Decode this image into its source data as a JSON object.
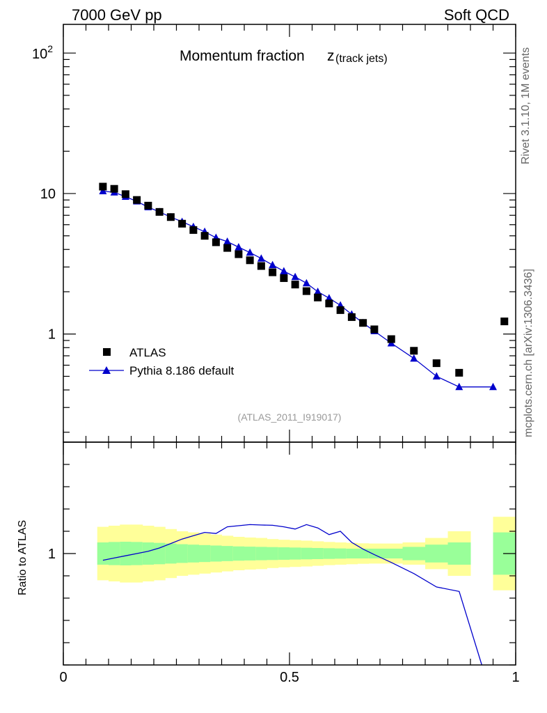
{
  "header": {
    "left": "7000 GeV pp",
    "right": "Soft QCD"
  },
  "side_labels": {
    "top": "Rivet 3.1.10,  1M events",
    "bottom": "mcplots.cern.ch [arXiv:1306.3436]"
  },
  "chart_data": [
    {
      "type": "scatter",
      "title": "Momentum fraction",
      "title_symbol": "z",
      "title_subscript": "(track jets)",
      "watermark": "(ATLAS_2011_I919017)",
      "xlabel": "",
      "ylabel": "",
      "xlim": [
        0,
        1
      ],
      "ylim": [
        0.17,
        160
      ],
      "yscale": "log",
      "yticks": [
        1,
        10,
        100
      ],
      "ytick_labels": [
        "1",
        "10",
        "10²"
      ],
      "legend_position": "lower-left",
      "series": [
        {
          "name": "ATLAS",
          "marker": "square",
          "color": "#000000",
          "x": [
            0.0875,
            0.1125,
            0.1375,
            0.1625,
            0.1875,
            0.2125,
            0.2375,
            0.2625,
            0.2875,
            0.3125,
            0.3375,
            0.3625,
            0.3875,
            0.4125,
            0.4375,
            0.4625,
            0.4875,
            0.5125,
            0.5375,
            0.5625,
            0.5875,
            0.6125,
            0.6375,
            0.6625,
            0.6875,
            0.725,
            0.775,
            0.825,
            0.875,
            0.975
          ],
          "y": [
            11.2,
            10.8,
            9.9,
            9.0,
            8.2,
            7.4,
            6.8,
            6.1,
            5.5,
            5.0,
            4.5,
            4.1,
            3.7,
            3.35,
            3.05,
            2.75,
            2.5,
            2.25,
            2.02,
            1.82,
            1.65,
            1.48,
            1.32,
            1.2,
            1.08,
            0.92,
            0.76,
            0.62,
            0.53,
            1.23
          ]
        },
        {
          "name": "Pythia 8.186 default",
          "marker": "triangle",
          "color": "#0000cc",
          "x": [
            0.0875,
            0.1125,
            0.1375,
            0.1625,
            0.1875,
            0.2125,
            0.2375,
            0.2625,
            0.2875,
            0.3125,
            0.3375,
            0.3625,
            0.3875,
            0.4125,
            0.4375,
            0.4625,
            0.4875,
            0.5125,
            0.5375,
            0.5625,
            0.5875,
            0.6125,
            0.6375,
            0.6625,
            0.6875,
            0.725,
            0.775,
            0.825,
            0.875,
            0.95
          ],
          "y": [
            10.4,
            10.2,
            9.5,
            8.8,
            8.0,
            7.4,
            6.8,
            6.3,
            5.8,
            5.35,
            4.85,
            4.55,
            4.15,
            3.8,
            3.45,
            3.1,
            2.8,
            2.55,
            2.3,
            2.0,
            1.8,
            1.6,
            1.38,
            1.2,
            1.05,
            0.86,
            0.67,
            0.5,
            0.42,
            0.42
          ]
        }
      ]
    },
    {
      "type": "line",
      "title": "",
      "xlabel": "",
      "ylabel": "Ratio to ATLAS",
      "xlim": [
        0,
        1
      ],
      "ylim": [
        0.5,
        1.5
      ],
      "xticks": [
        0,
        0.5,
        1
      ],
      "xtick_labels": [
        "0",
        "0.5",
        "1"
      ],
      "yticks": [
        1
      ],
      "ytick_labels": [
        "1"
      ],
      "bands": {
        "x_edges": [
          0.075,
          0.1,
          0.125,
          0.15,
          0.175,
          0.2,
          0.225,
          0.25,
          0.275,
          0.3,
          0.325,
          0.35,
          0.375,
          0.4,
          0.425,
          0.45,
          0.475,
          0.5,
          0.525,
          0.55,
          0.575,
          0.6,
          0.625,
          0.65,
          0.675,
          0.7,
          0.75,
          0.8,
          0.85,
          0.9,
          0.95,
          1.0
        ],
        "present": [
          true,
          true,
          true,
          true,
          true,
          true,
          true,
          true,
          true,
          true,
          true,
          true,
          true,
          true,
          true,
          true,
          true,
          true,
          true,
          true,
          true,
          true,
          true,
          true,
          true,
          true,
          true,
          true,
          true,
          false,
          true
        ],
        "stat_err": [
          0.05,
          0.052,
          0.053,
          0.052,
          0.05,
          0.048,
          0.045,
          0.042,
          0.04,
          0.038,
          0.036,
          0.034,
          0.032,
          0.031,
          0.03,
          0.029,
          0.028,
          0.027,
          0.026,
          0.025,
          0.024,
          0.023,
          0.022,
          0.022,
          0.022,
          0.022,
          0.03,
          0.04,
          0.05,
          0.0,
          0.095
        ],
        "total_err": [
          0.12,
          0.125,
          0.13,
          0.13,
          0.125,
          0.12,
          0.11,
          0.1,
          0.095,
          0.09,
          0.085,
          0.08,
          0.075,
          0.072,
          0.07,
          0.065,
          0.062,
          0.06,
          0.058,
          0.055,
          0.052,
          0.05,
          0.048,
          0.046,
          0.045,
          0.045,
          0.05,
          0.07,
          0.1,
          0.0,
          0.165
        ]
      },
      "series": [
        {
          "name": "Pythia 8.186 default",
          "color": "#0000cc",
          "x": [
            0.0875,
            0.1125,
            0.1375,
            0.1625,
            0.1875,
            0.2125,
            0.2375,
            0.2625,
            0.2875,
            0.3125,
            0.3375,
            0.3625,
            0.3875,
            0.4125,
            0.4375,
            0.4625,
            0.4875,
            0.5125,
            0.5375,
            0.5625,
            0.5875,
            0.6125,
            0.6375,
            0.6625,
            0.6875,
            0.725,
            0.775,
            0.825,
            0.875,
            0.925
          ],
          "y": [
            0.97,
            0.98,
            0.99,
            1.0,
            1.01,
            1.025,
            1.045,
            1.065,
            1.08,
            1.095,
            1.09,
            1.12,
            1.125,
            1.13,
            1.128,
            1.127,
            1.12,
            1.11,
            1.13,
            1.115,
            1.085,
            1.1,
            1.05,
            1.02,
            0.995,
            0.96,
            0.91,
            0.85,
            0.83,
            0.5
          ]
        }
      ]
    }
  ]
}
